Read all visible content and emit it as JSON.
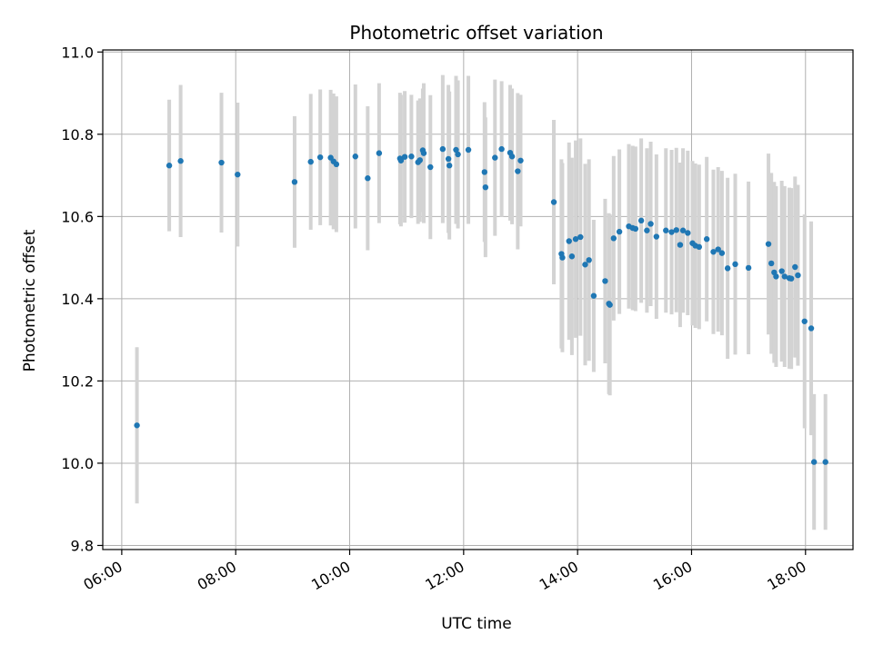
{
  "chart_data": {
    "type": "scatter",
    "title": "Photometric offset variation",
    "xlabel": "UTC time",
    "ylabel": "Photometric offset",
    "x_unit": "hours UTC",
    "xlim": [
      "05:40",
      "18:50"
    ],
    "ylim": [
      9.79,
      11.005
    ],
    "xticks": [
      "06:00",
      "08:00",
      "10:00",
      "12:00",
      "14:00",
      "16:00",
      "18:00"
    ],
    "yticks": [
      "9.8",
      "10.0",
      "10.2",
      "10.4",
      "10.6",
      "10.8",
      "11.0"
    ],
    "grid": true,
    "marker_color": "#1f77b4",
    "errorbar_color": "#d3d3d3",
    "series": [
      {
        "x": [
          "06:16",
          "06:50",
          "07:02",
          "07:45",
          "08:02",
          "09:02",
          "09:19",
          "09:29",
          "09:40",
          "09:43",
          "09:46",
          "10:06",
          "10:19",
          "10:31",
          "10:53",
          "10:54",
          "10:58",
          "11:05",
          "11:12",
          "11:14",
          "11:17",
          "11:18",
          "11:25",
          "11:38",
          "11:44",
          "11:45",
          "11:52",
          "11:54",
          "12:05",
          "12:22",
          "12:23",
          "12:33",
          "12:40",
          "12:49",
          "12:51",
          "12:57",
          "13:00",
          "13:35",
          "13:43",
          "13:44",
          "13:51",
          "13:54",
          "13:58",
          "14:03",
          "14:08",
          "14:12",
          "14:17",
          "14:29",
          "14:33",
          "14:34",
          "14:38",
          "14:44",
          "14:54",
          "14:58",
          "15:01",
          "15:07",
          "15:13",
          "15:17",
          "15:23",
          "15:33",
          "15:39",
          "15:44",
          "15:48",
          "15:51",
          "15:56",
          "16:01",
          "16:04",
          "16:08",
          "16:16",
          "16:23",
          "16:28",
          "16:32",
          "16:38",
          "16:46",
          "17:00",
          "17:21",
          "17:24",
          "17:27",
          "17:29",
          "17:35",
          "17:38",
          "17:43",
          "17:45",
          "17:49",
          "17:52",
          "17:59",
          "18:06",
          "18:09",
          "18:21"
        ],
        "y": [
          10.092,
          10.724,
          10.735,
          10.731,
          10.702,
          10.684,
          10.733,
          10.744,
          10.743,
          10.734,
          10.727,
          10.746,
          10.693,
          10.754,
          10.741,
          10.736,
          10.745,
          10.746,
          10.732,
          10.737,
          10.761,
          10.754,
          10.72,
          10.764,
          10.74,
          10.724,
          10.762,
          10.751,
          10.762,
          10.708,
          10.671,
          10.743,
          10.764,
          10.755,
          10.746,
          10.71,
          10.736,
          10.635,
          10.509,
          10.5,
          10.54,
          10.503,
          10.545,
          10.55,
          10.483,
          10.494,
          10.407,
          10.443,
          10.388,
          10.385,
          10.547,
          10.563,
          10.576,
          10.572,
          10.57,
          10.59,
          10.566,
          10.582,
          10.551,
          10.566,
          10.562,
          10.567,
          10.531,
          10.566,
          10.56,
          10.535,
          10.529,
          10.526,
          10.545,
          10.514,
          10.52,
          10.511,
          10.474,
          10.484,
          10.475,
          10.533,
          10.486,
          10.464,
          10.454,
          10.467,
          10.454,
          10.45,
          10.449,
          10.477,
          10.457,
          10.345,
          10.328,
          10.003,
          10.003
        ],
        "err": [
          0.19,
          0.16,
          0.185,
          0.17,
          0.175,
          0.16,
          0.165,
          0.165,
          0.165,
          0.165,
          0.165,
          0.175,
          0.175,
          0.17,
          0.16,
          0.16,
          0.16,
          0.15,
          0.15,
          0.15,
          0.15,
          0.17,
          0.175,
          0.18,
          0.18,
          0.18,
          0.18,
          0.18,
          0.18,
          0.17,
          0.17,
          0.19,
          0.165,
          0.165,
          0.165,
          0.19,
          0.16,
          0.2,
          0.23,
          0.23,
          0.24,
          0.24,
          0.24,
          0.24,
          0.245,
          0.245,
          0.185,
          0.2,
          0.22,
          0.22,
          0.2,
          0.2,
          0.2,
          0.2,
          0.2,
          0.2,
          0.2,
          0.2,
          0.2,
          0.2,
          0.2,
          0.2,
          0.2,
          0.2,
          0.2,
          0.2,
          0.2,
          0.2,
          0.2,
          0.2,
          0.2,
          0.2,
          0.22,
          0.22,
          0.21,
          0.22,
          0.22,
          0.22,
          0.22,
          0.22,
          0.22,
          0.22,
          0.22,
          0.22,
          0.22,
          0.26,
          0.26,
          0.165,
          0.165
        ]
      }
    ]
  }
}
